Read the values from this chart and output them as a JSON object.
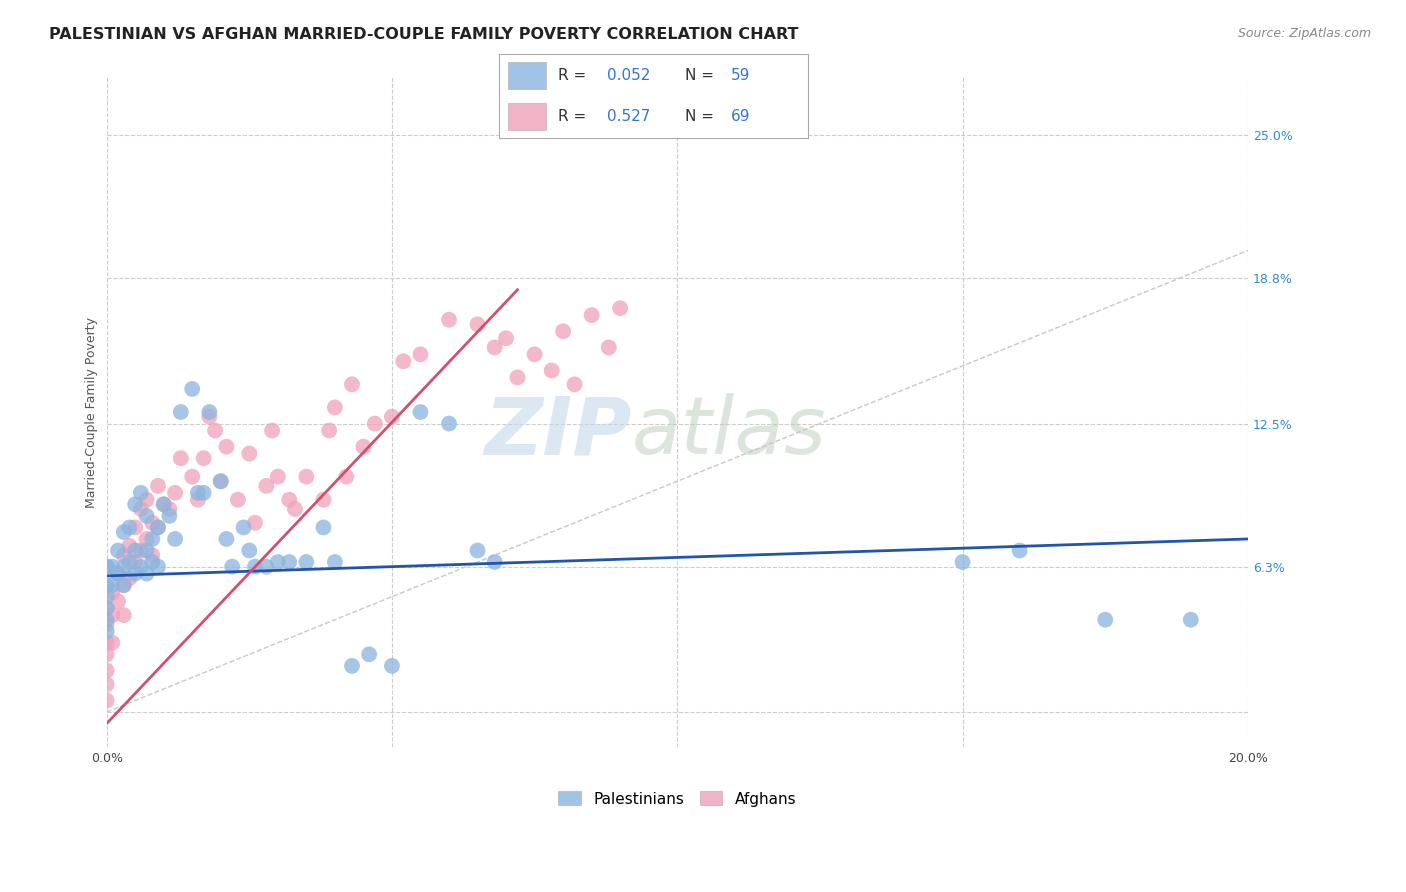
{
  "title": "PALESTINIAN VS AFGHAN MARRIED-COUPLE FAMILY POVERTY CORRELATION CHART",
  "source": "Source: ZipAtlas.com",
  "ylabel": "Married-Couple Family Poverty",
  "xlim": [
    0.0,
    0.2
  ],
  "ylim": [
    -0.015,
    0.275
  ],
  "grid_color": "#cccccc",
  "watermark_zip": "ZIP",
  "watermark_atlas": "atlas",
  "palestinians_color": "#8ab4e0",
  "afghans_color": "#f0a0b8",
  "regression_palestinian_color": "#2255aa",
  "regression_afghan_color": "#d05070",
  "diagonal_color": "#c8c8c8",
  "R_palestinian": "0.052",
  "N_palestinian": "59",
  "R_afghan": "0.527",
  "N_afghan": "69",
  "legend_text_color": "#3377cc",
  "legend_label_color": "#333333",
  "background_color": "#ffffff",
  "title_fontsize": 11.5,
  "source_fontsize": 9,
  "axis_label_fontsize": 9,
  "tick_fontsize": 9,
  "palestinians_x": [
    0.0,
    0.0,
    0.0,
    0.0,
    0.0,
    0.0,
    0.0,
    0.001,
    0.001,
    0.002,
    0.002,
    0.003,
    0.003,
    0.003,
    0.004,
    0.004,
    0.005,
    0.005,
    0.005,
    0.006,
    0.006,
    0.007,
    0.007,
    0.007,
    0.008,
    0.008,
    0.009,
    0.009,
    0.01,
    0.011,
    0.012,
    0.013,
    0.015,
    0.016,
    0.017,
    0.018,
    0.02,
    0.021,
    0.022,
    0.024,
    0.025,
    0.026,
    0.028,
    0.03,
    0.032,
    0.035,
    0.038,
    0.04,
    0.043,
    0.046,
    0.05,
    0.055,
    0.06,
    0.065,
    0.068,
    0.15,
    0.16,
    0.175,
    0.19
  ],
  "palestinians_y": [
    0.063,
    0.063,
    0.055,
    0.05,
    0.045,
    0.04,
    0.035,
    0.063,
    0.055,
    0.07,
    0.06,
    0.078,
    0.063,
    0.055,
    0.08,
    0.065,
    0.09,
    0.07,
    0.06,
    0.095,
    0.063,
    0.085,
    0.07,
    0.06,
    0.075,
    0.065,
    0.08,
    0.063,
    0.09,
    0.085,
    0.075,
    0.13,
    0.14,
    0.095,
    0.095,
    0.13,
    0.1,
    0.075,
    0.063,
    0.08,
    0.07,
    0.063,
    0.063,
    0.065,
    0.065,
    0.065,
    0.08,
    0.065,
    0.02,
    0.025,
    0.02,
    0.13,
    0.125,
    0.07,
    0.065,
    0.065,
    0.07,
    0.04,
    0.04
  ],
  "afghans_x": [
    0.0,
    0.0,
    0.0,
    0.0,
    0.0,
    0.0,
    0.0,
    0.001,
    0.001,
    0.001,
    0.002,
    0.002,
    0.003,
    0.003,
    0.003,
    0.004,
    0.004,
    0.005,
    0.005,
    0.006,
    0.006,
    0.007,
    0.007,
    0.008,
    0.008,
    0.009,
    0.009,
    0.01,
    0.011,
    0.012,
    0.013,
    0.015,
    0.016,
    0.017,
    0.018,
    0.019,
    0.02,
    0.021,
    0.023,
    0.025,
    0.026,
    0.028,
    0.029,
    0.03,
    0.032,
    0.033,
    0.035,
    0.038,
    0.039,
    0.04,
    0.042,
    0.043,
    0.045,
    0.047,
    0.05,
    0.052,
    0.055,
    0.06,
    0.065,
    0.068,
    0.07,
    0.072,
    0.075,
    0.078,
    0.08,
    0.082,
    0.085,
    0.088,
    0.09
  ],
  "afghans_y": [
    0.045,
    0.038,
    0.03,
    0.025,
    0.018,
    0.012,
    0.005,
    0.052,
    0.042,
    0.03,
    0.06,
    0.048,
    0.068,
    0.055,
    0.042,
    0.072,
    0.058,
    0.08,
    0.065,
    0.088,
    0.07,
    0.092,
    0.075,
    0.082,
    0.068,
    0.098,
    0.08,
    0.09,
    0.088,
    0.095,
    0.11,
    0.102,
    0.092,
    0.11,
    0.128,
    0.122,
    0.1,
    0.115,
    0.092,
    0.112,
    0.082,
    0.098,
    0.122,
    0.102,
    0.092,
    0.088,
    0.102,
    0.092,
    0.122,
    0.132,
    0.102,
    0.142,
    0.115,
    0.125,
    0.128,
    0.152,
    0.155,
    0.17,
    0.168,
    0.158,
    0.162,
    0.145,
    0.155,
    0.148,
    0.165,
    0.142,
    0.172,
    0.158,
    0.175
  ]
}
